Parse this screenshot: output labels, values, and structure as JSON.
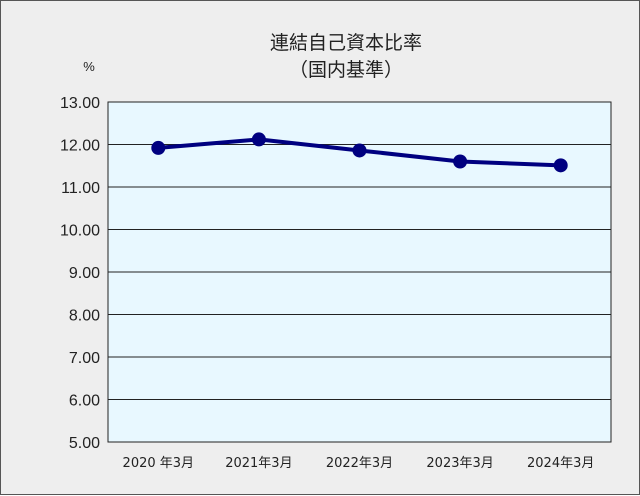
{
  "chart_data": {
    "type": "line",
    "title": "連結自己資本比率",
    "subtitle": "（国内基準）",
    "ylabel": "%",
    "xlabel": "",
    "categories": [
      "2020 年3月",
      "2021年3月",
      "2022年3月",
      "2023年3月",
      "2024年3月"
    ],
    "series": [
      {
        "values": [
          11.92,
          12.12,
          11.86,
          11.6,
          11.51
        ]
      }
    ],
    "ylim": [
      5,
      13
    ],
    "yticks": [
      "5.00",
      "6.00",
      "7.00",
      "8.00",
      "9.00",
      "10.00",
      "11.00",
      "12.00",
      "13.00"
    ],
    "grid": true,
    "legend": "none",
    "colors": {
      "line": "#000080",
      "plot_background": "#e8f8ff",
      "frame_background": "#eeeeee",
      "grid": "#222222"
    }
  }
}
